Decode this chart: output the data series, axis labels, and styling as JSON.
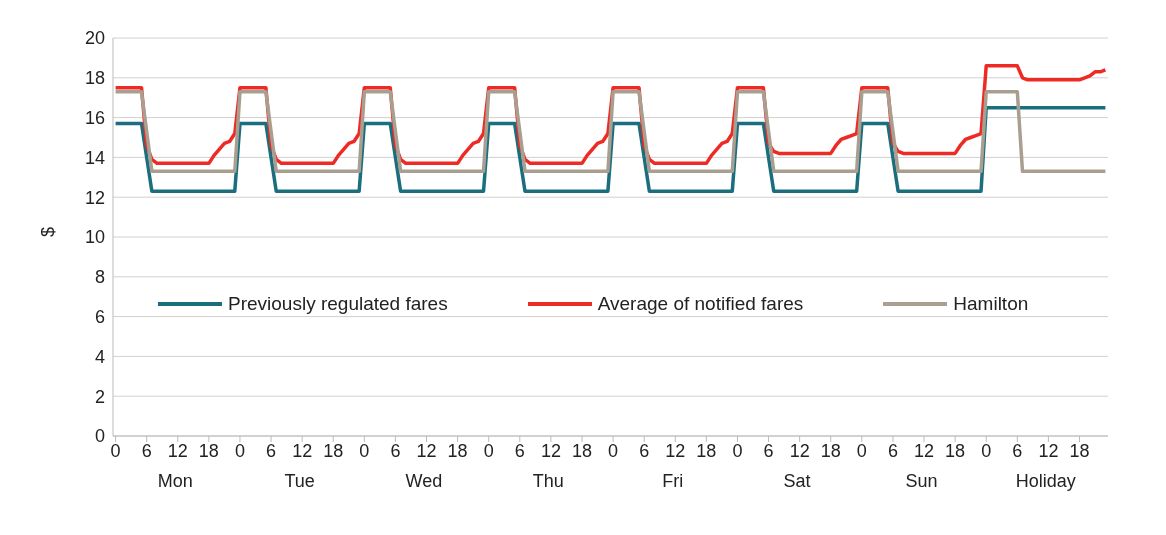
{
  "chart_data": {
    "type": "line",
    "ylabel": "$",
    "ylim": [
      0,
      20
    ],
    "yticks": [
      0,
      2,
      4,
      6,
      8,
      10,
      12,
      14,
      16,
      18,
      20
    ],
    "categories": [
      "0",
      null,
      null,
      null,
      null,
      null,
      "6",
      null,
      null,
      null,
      null,
      null,
      "12",
      null,
      null,
      null,
      null,
      null,
      "18",
      null,
      null,
      null,
      null,
      null,
      "0",
      null,
      null,
      null,
      null,
      null,
      "6",
      null,
      null,
      null,
      null,
      null,
      "12",
      null,
      null,
      null,
      null,
      null,
      "18",
      null,
      null,
      null,
      null,
      null,
      "0",
      null,
      null,
      null,
      null,
      null,
      "6",
      null,
      null,
      null,
      null,
      null,
      "12",
      null,
      null,
      null,
      null,
      null,
      "18",
      null,
      null,
      null,
      null,
      null,
      "0",
      null,
      null,
      null,
      null,
      null,
      "6",
      null,
      null,
      null,
      null,
      null,
      "12",
      null,
      null,
      null,
      null,
      null,
      "18",
      null,
      null,
      null,
      null,
      null,
      "0",
      null,
      null,
      null,
      null,
      null,
      "6",
      null,
      null,
      null,
      null,
      null,
      "12",
      null,
      null,
      null,
      null,
      null,
      "18",
      null,
      null,
      null,
      null,
      null,
      "0",
      null,
      null,
      null,
      null,
      null,
      "6",
      null,
      null,
      null,
      null,
      null,
      "12",
      null,
      null,
      null,
      null,
      null,
      "18",
      null,
      null,
      null,
      null,
      null,
      "0",
      null,
      null,
      null,
      null,
      null,
      "6",
      null,
      null,
      null,
      null,
      null,
      "12",
      null,
      null,
      null,
      null,
      null,
      "18",
      null,
      null,
      null,
      null,
      null,
      "0",
      null,
      null,
      null,
      null,
      null,
      "6",
      null,
      null,
      null,
      null,
      null,
      "12",
      null,
      null,
      null,
      null,
      null,
      "18",
      null,
      null,
      null,
      null,
      null
    ],
    "annotations": [
      "Mon",
      "Tue",
      "Wed",
      "Thu",
      "Fri",
      "Sat",
      "Sun",
      "Holiday"
    ],
    "grid": "y",
    "legend": "center",
    "line_style": "solid",
    "series": [
      {
        "name": "Previously regulated fares",
        "color": "#1b6e7d",
        "values": [
          15.7,
          15.7,
          15.7,
          15.7,
          15.7,
          15.7,
          14.0,
          12.3,
          12.3,
          12.3,
          12.3,
          12.3,
          12.3,
          12.3,
          12.3,
          12.3,
          12.3,
          12.3,
          12.3,
          12.3,
          12.3,
          12.3,
          12.3,
          12.3,
          15.7,
          15.7,
          15.7,
          15.7,
          15.7,
          15.7,
          14.0,
          12.3,
          12.3,
          12.3,
          12.3,
          12.3,
          12.3,
          12.3,
          12.3,
          12.3,
          12.3,
          12.3,
          12.3,
          12.3,
          12.3,
          12.3,
          12.3,
          12.3,
          15.7,
          15.7,
          15.7,
          15.7,
          15.7,
          15.7,
          14.0,
          12.3,
          12.3,
          12.3,
          12.3,
          12.3,
          12.3,
          12.3,
          12.3,
          12.3,
          12.3,
          12.3,
          12.3,
          12.3,
          12.3,
          12.3,
          12.3,
          12.3,
          15.7,
          15.7,
          15.7,
          15.7,
          15.7,
          15.7,
          14.0,
          12.3,
          12.3,
          12.3,
          12.3,
          12.3,
          12.3,
          12.3,
          12.3,
          12.3,
          12.3,
          12.3,
          12.3,
          12.3,
          12.3,
          12.3,
          12.3,
          12.3,
          15.7,
          15.7,
          15.7,
          15.7,
          15.7,
          15.7,
          14.0,
          12.3,
          12.3,
          12.3,
          12.3,
          12.3,
          12.3,
          12.3,
          12.3,
          12.3,
          12.3,
          12.3,
          12.3,
          12.3,
          12.3,
          12.3,
          12.3,
          12.3,
          15.7,
          15.7,
          15.7,
          15.7,
          15.7,
          15.7,
          14.0,
          12.3,
          12.3,
          12.3,
          12.3,
          12.3,
          12.3,
          12.3,
          12.3,
          12.3,
          12.3,
          12.3,
          12.3,
          12.3,
          12.3,
          12.3,
          12.3,
          12.3,
          15.7,
          15.7,
          15.7,
          15.7,
          15.7,
          15.7,
          14.0,
          12.3,
          12.3,
          12.3,
          12.3,
          12.3,
          12.3,
          12.3,
          12.3,
          12.3,
          12.3,
          12.3,
          12.3,
          12.3,
          12.3,
          12.3,
          12.3,
          12.3,
          16.5,
          16.5,
          16.5,
          16.5,
          16.5,
          16.5,
          16.5,
          16.5,
          16.5,
          16.5,
          16.5,
          16.5,
          16.5,
          16.5,
          16.5,
          16.5,
          16.5,
          16.5,
          16.5,
          16.5,
          16.5,
          16.5,
          16.5,
          16.5
        ]
      },
      {
        "name": "Average of notified fares",
        "color": "#ee2a24",
        "values": [
          17.5,
          17.5,
          17.5,
          17.5,
          17.5,
          17.5,
          14.6,
          13.9,
          13.7,
          13.7,
          13.7,
          13.7,
          13.7,
          13.7,
          13.7,
          13.7,
          13.7,
          13.7,
          13.7,
          14.1,
          14.4,
          14.7,
          14.8,
          15.2,
          17.5,
          17.5,
          17.5,
          17.5,
          17.5,
          17.5,
          14.6,
          13.9,
          13.7,
          13.7,
          13.7,
          13.7,
          13.7,
          13.7,
          13.7,
          13.7,
          13.7,
          13.7,
          13.7,
          14.1,
          14.4,
          14.7,
          14.8,
          15.2,
          17.5,
          17.5,
          17.5,
          17.5,
          17.5,
          17.5,
          14.6,
          13.9,
          13.7,
          13.7,
          13.7,
          13.7,
          13.7,
          13.7,
          13.7,
          13.7,
          13.7,
          13.7,
          13.7,
          14.1,
          14.4,
          14.7,
          14.8,
          15.2,
          17.5,
          17.5,
          17.5,
          17.5,
          17.5,
          17.5,
          14.6,
          13.9,
          13.7,
          13.7,
          13.7,
          13.7,
          13.7,
          13.7,
          13.7,
          13.7,
          13.7,
          13.7,
          13.7,
          14.1,
          14.4,
          14.7,
          14.8,
          15.2,
          17.5,
          17.5,
          17.5,
          17.5,
          17.5,
          17.5,
          14.6,
          13.9,
          13.7,
          13.7,
          13.7,
          13.7,
          13.7,
          13.7,
          13.7,
          13.7,
          13.7,
          13.7,
          13.7,
          14.1,
          14.4,
          14.7,
          14.8,
          15.2,
          17.5,
          17.5,
          17.5,
          17.5,
          17.5,
          17.5,
          14.7,
          14.3,
          14.2,
          14.2,
          14.2,
          14.2,
          14.2,
          14.2,
          14.2,
          14.2,
          14.2,
          14.2,
          14.2,
          14.6,
          14.9,
          15.0,
          15.1,
          15.2,
          17.5,
          17.5,
          17.5,
          17.5,
          17.5,
          17.5,
          14.7,
          14.3,
          14.2,
          14.2,
          14.2,
          14.2,
          14.2,
          14.2,
          14.2,
          14.2,
          14.2,
          14.2,
          14.2,
          14.6,
          14.9,
          15.0,
          15.1,
          15.2,
          18.6,
          18.6,
          18.6,
          18.6,
          18.6,
          18.6,
          18.6,
          18.0,
          17.9,
          17.9,
          17.9,
          17.9,
          17.9,
          17.9,
          17.9,
          17.9,
          17.9,
          17.9,
          17.9,
          18.0,
          18.1,
          18.3,
          18.3,
          18.4
        ]
      },
      {
        "name": "Hamilton",
        "color": "#a89f91",
        "values": [
          17.3,
          17.3,
          17.3,
          17.3,
          17.3,
          17.3,
          15.3,
          13.3,
          13.3,
          13.3,
          13.3,
          13.3,
          13.3,
          13.3,
          13.3,
          13.3,
          13.3,
          13.3,
          13.3,
          13.3,
          13.3,
          13.3,
          13.3,
          13.3,
          17.3,
          17.3,
          17.3,
          17.3,
          17.3,
          17.3,
          15.3,
          13.3,
          13.3,
          13.3,
          13.3,
          13.3,
          13.3,
          13.3,
          13.3,
          13.3,
          13.3,
          13.3,
          13.3,
          13.3,
          13.3,
          13.3,
          13.3,
          13.3,
          17.3,
          17.3,
          17.3,
          17.3,
          17.3,
          17.3,
          15.3,
          13.3,
          13.3,
          13.3,
          13.3,
          13.3,
          13.3,
          13.3,
          13.3,
          13.3,
          13.3,
          13.3,
          13.3,
          13.3,
          13.3,
          13.3,
          13.3,
          13.3,
          17.3,
          17.3,
          17.3,
          17.3,
          17.3,
          17.3,
          15.3,
          13.3,
          13.3,
          13.3,
          13.3,
          13.3,
          13.3,
          13.3,
          13.3,
          13.3,
          13.3,
          13.3,
          13.3,
          13.3,
          13.3,
          13.3,
          13.3,
          13.3,
          17.3,
          17.3,
          17.3,
          17.3,
          17.3,
          17.3,
          15.3,
          13.3,
          13.3,
          13.3,
          13.3,
          13.3,
          13.3,
          13.3,
          13.3,
          13.3,
          13.3,
          13.3,
          13.3,
          13.3,
          13.3,
          13.3,
          13.3,
          13.3,
          17.3,
          17.3,
          17.3,
          17.3,
          17.3,
          17.3,
          15.3,
          13.3,
          13.3,
          13.3,
          13.3,
          13.3,
          13.3,
          13.3,
          13.3,
          13.3,
          13.3,
          13.3,
          13.3,
          13.3,
          13.3,
          13.3,
          13.3,
          13.3,
          17.3,
          17.3,
          17.3,
          17.3,
          17.3,
          17.3,
          15.3,
          13.3,
          13.3,
          13.3,
          13.3,
          13.3,
          13.3,
          13.3,
          13.3,
          13.3,
          13.3,
          13.3,
          13.3,
          13.3,
          13.3,
          13.3,
          13.3,
          13.3,
          17.3,
          17.3,
          17.3,
          17.3,
          17.3,
          17.3,
          17.3,
          13.3,
          13.3,
          13.3,
          13.3,
          13.3,
          13.3,
          13.3,
          13.3,
          13.3,
          13.3,
          13.3,
          13.3,
          13.3,
          13.3,
          13.3,
          13.3,
          13.3
        ]
      }
    ]
  }
}
